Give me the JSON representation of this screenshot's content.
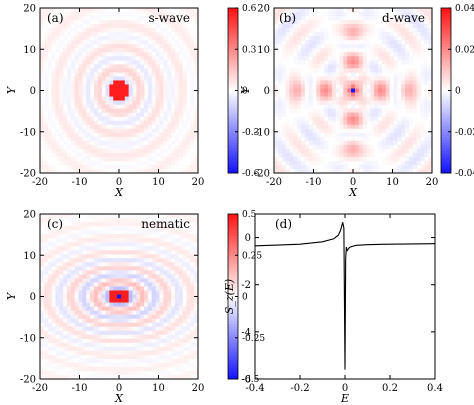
{
  "chart_data": [
    {
      "type": "heatmap",
      "panel": "(a)",
      "label": "s-wave",
      "xlabel": "X",
      "ylabel": "Y",
      "xlim": [
        -20,
        20
      ],
      "ylim": [
        -20,
        20
      ],
      "xticks": [
        "-20",
        "-10",
        "0",
        "10",
        "20"
      ],
      "yticks": [
        "-20",
        "-10",
        "0",
        "10",
        "20"
      ],
      "colorbar": {
        "min": -0.6,
        "max": 0.6,
        "ticks": [
          "0.6",
          "0.3",
          "0",
          "-0.3",
          "-0.6"
        ]
      },
      "pattern": "concentric rings around origin; strong positive core (~0.6) at center, weak alternating rings"
    },
    {
      "type": "heatmap",
      "panel": "(b)",
      "label": "d-wave",
      "xlabel": "X",
      "ylabel": "Y",
      "xlim": [
        -20,
        20
      ],
      "ylim": [
        -20,
        20
      ],
      "xticks": [
        "-20",
        "-10",
        "0",
        "10",
        "20"
      ],
      "yticks": [
        "-20",
        "-10",
        "0",
        "10",
        "20"
      ],
      "colorbar": {
        "min": -0.04,
        "max": 0.04,
        "ticks": [
          "0.04",
          "0.02",
          "0",
          "-0.02",
          "-0.04"
        ]
      },
      "pattern": "cross-shaped positive pattern along x and y axes with periodic modulation; strong negative single site at origin"
    },
    {
      "type": "heatmap",
      "panel": "(c)",
      "label": "nematic",
      "xlabel": "X",
      "ylabel": "Y",
      "xlim": [
        -20,
        20
      ],
      "ylim": [
        -20,
        20
      ],
      "xticks": [
        "-20",
        "-10",
        "0",
        "10",
        "20"
      ],
      "yticks": [
        "-20",
        "-10",
        "0",
        "10",
        "20"
      ],
      "colorbar": {
        "min": -0.5,
        "max": 0.5,
        "ticks": [
          "0.5",
          "0.25",
          "0",
          "-0.25",
          "-0.5"
        ]
      },
      "pattern": "elliptical rings elongated along X; strong positive core with negative center site"
    },
    {
      "type": "line",
      "panel": "(d)",
      "xlabel": "E",
      "ylabel": "S_z(E)",
      "xlim": [
        -0.4,
        0.4
      ],
      "ylim": [
        -6,
        1
      ],
      "xticks": [
        "-0.4",
        "-0.2",
        "0",
        "0.2",
        "0.4"
      ],
      "yticks": [
        "0",
        "-2",
        "-4",
        "-6"
      ],
      "series": [
        {
          "x": [
            -0.4,
            -0.3,
            -0.2,
            -0.1,
            -0.05,
            -0.03,
            -0.02,
            -0.01,
            -0.005,
            0.0,
            0.003,
            0.006,
            0.01,
            0.02,
            0.03,
            0.05,
            0.1,
            0.2,
            0.3,
            0.4
          ],
          "y": [
            -0.35,
            -0.32,
            -0.28,
            -0.18,
            -0.05,
            0.1,
            0.3,
            0.65,
            0.4,
            -5.6,
            -0.9,
            -0.4,
            -0.55,
            -0.42,
            -0.38,
            -0.33,
            -0.3,
            -0.28,
            -0.27,
            -0.26
          ]
        }
      ]
    }
  ]
}
